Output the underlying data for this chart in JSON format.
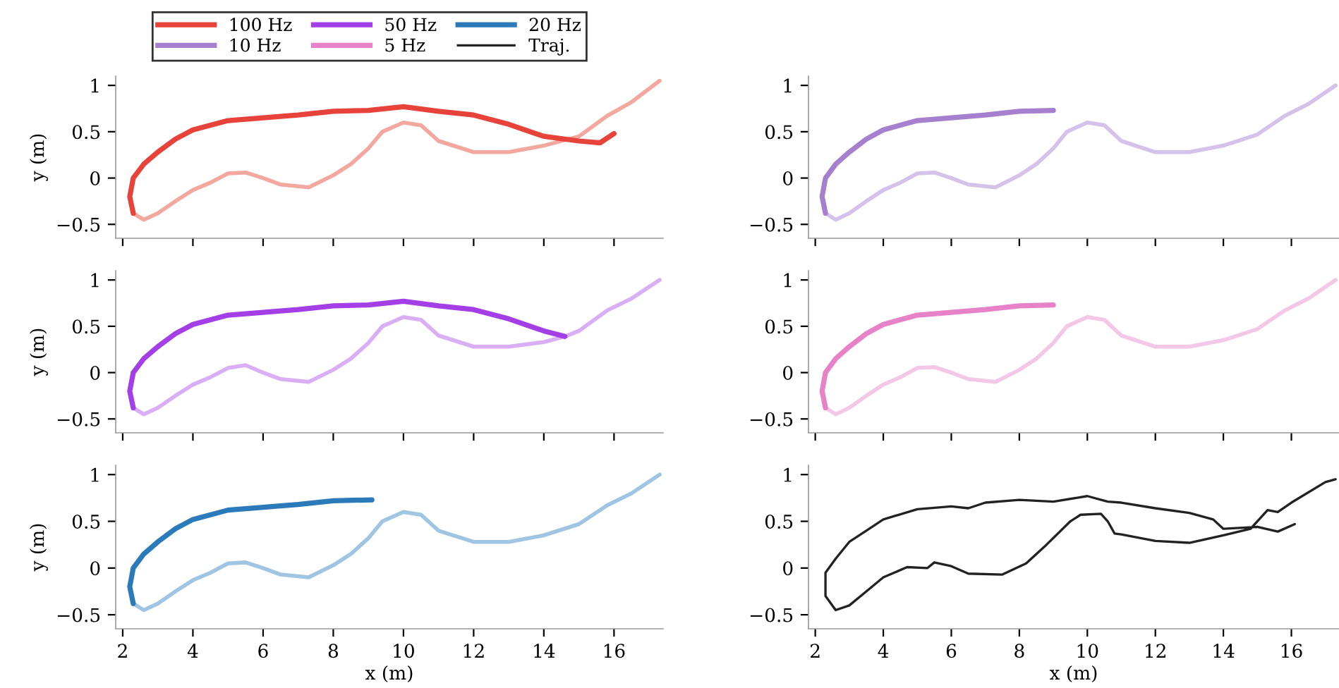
{
  "chart_data": [
    {
      "type": "line",
      "ylabel": "y (m)",
      "xlim": [
        1.8,
        17.4
      ],
      "ylim": [
        -0.65,
        1.1
      ],
      "xticks": [
        2,
        4,
        6,
        8,
        10,
        12,
        14,
        16
      ],
      "yticks": [
        -0.5,
        0,
        0.5,
        1
      ],
      "tick_labels": "y",
      "legend": "top",
      "series": [
        {
          "color": "#f4a79f",
          "x": [
            17.3,
            16.5,
            15.8,
            15.0,
            14.0,
            13.0,
            12.0,
            11.0,
            10.5,
            10.0,
            9.4,
            9.0,
            8.5,
            8.0,
            7.3,
            6.5,
            6.0,
            5.5,
            5.0,
            4.5,
            4.0,
            3.5,
            3.0,
            2.6,
            2.3
          ],
          "values": [
            1.05,
            0.82,
            0.67,
            0.45,
            0.35,
            0.28,
            0.28,
            0.4,
            0.57,
            0.6,
            0.5,
            0.32,
            0.15,
            0.03,
            -0.1,
            -0.07,
            0.0,
            0.06,
            0.05,
            -0.05,
            -0.13,
            -0.25,
            -0.38,
            -0.45,
            -0.38
          ]
        },
        {
          "name": "100 Hz",
          "color": "#e8433a",
          "x": [
            2.3,
            2.2,
            2.3,
            2.6,
            3.0,
            3.5,
            4.0,
            5.0,
            6.0,
            7.0,
            8.0,
            9.0,
            10.0,
            11.0,
            12.0,
            13.0,
            14.0,
            15.0,
            15.6,
            16.0
          ],
          "values": [
            -0.38,
            -0.2,
            0.0,
            0.15,
            0.28,
            0.42,
            0.52,
            0.62,
            0.65,
            0.68,
            0.72,
            0.73,
            0.77,
            0.72,
            0.68,
            0.58,
            0.45,
            0.4,
            0.38,
            0.48
          ]
        }
      ]
    },
    {
      "type": "line",
      "xlim": [
        1.8,
        17.4
      ],
      "ylim": [
        -0.65,
        1.1
      ],
      "xticks": [
        2,
        4,
        6,
        8,
        10,
        12,
        14,
        16
      ],
      "yticks": [
        -0.5,
        0,
        0.5,
        1
      ],
      "tick_labels": "y",
      "legend": "top",
      "series": [
        {
          "color": "#d4c2ea",
          "x": [
            17.3,
            16.5,
            15.8,
            15.0,
            14.0,
            13.0,
            12.0,
            11.0,
            10.5,
            10.0,
            9.4,
            9.0,
            8.5,
            8.0,
            7.3,
            6.5,
            6.0,
            5.5,
            5.0,
            4.5,
            4.0,
            3.5,
            3.0,
            2.6,
            2.3
          ],
          "values": [
            1.0,
            0.8,
            0.67,
            0.47,
            0.35,
            0.28,
            0.28,
            0.4,
            0.57,
            0.6,
            0.5,
            0.32,
            0.15,
            0.03,
            -0.1,
            -0.07,
            0.0,
            0.06,
            0.05,
            -0.05,
            -0.13,
            -0.25,
            -0.38,
            -0.45,
            -0.38
          ]
        },
        {
          "name": "10 Hz",
          "color": "#a77fcf",
          "x": [
            2.3,
            2.2,
            2.3,
            2.6,
            3.0,
            3.5,
            4.0,
            5.0,
            6.0,
            7.0,
            8.0,
            9.0
          ],
          "values": [
            -0.38,
            -0.2,
            0.0,
            0.15,
            0.28,
            0.42,
            0.52,
            0.62,
            0.65,
            0.68,
            0.72,
            0.73
          ]
        }
      ]
    },
    {
      "type": "line",
      "ylabel": "y (m)",
      "xlim": [
        1.8,
        17.4
      ],
      "ylim": [
        -0.65,
        1.1
      ],
      "xticks": [
        2,
        4,
        6,
        8,
        10,
        12,
        14,
        16
      ],
      "yticks": [
        -0.5,
        0,
        0.5,
        1
      ],
      "tick_labels": "y",
      "legend": "top",
      "series": [
        {
          "color": "#d9aef5",
          "x": [
            17.3,
            16.5,
            15.8,
            15.0,
            14.6,
            14.0,
            13.0,
            12.0,
            11.0,
            10.5,
            10.0,
            9.4,
            9.0,
            8.5,
            8.0,
            7.3,
            6.5,
            6.0,
            5.5,
            5.0,
            4.5,
            4.0,
            3.5,
            3.0,
            2.6,
            2.3
          ],
          "values": [
            1.0,
            0.8,
            0.67,
            0.45,
            0.39,
            0.33,
            0.28,
            0.28,
            0.4,
            0.57,
            0.6,
            0.5,
            0.32,
            0.15,
            0.03,
            -0.1,
            -0.07,
            0.0,
            0.08,
            0.05,
            -0.05,
            -0.13,
            -0.25,
            -0.38,
            -0.45,
            -0.38
          ]
        },
        {
          "name": "50 Hz",
          "color": "#a43ee6",
          "x": [
            2.3,
            2.2,
            2.3,
            2.6,
            3.0,
            3.5,
            4.0,
            5.0,
            6.0,
            7.0,
            8.0,
            9.0,
            10.0,
            11.0,
            12.0,
            13.0,
            14.0,
            14.6
          ],
          "values": [
            -0.38,
            -0.2,
            0.0,
            0.15,
            0.28,
            0.42,
            0.52,
            0.62,
            0.65,
            0.68,
            0.72,
            0.73,
            0.77,
            0.72,
            0.68,
            0.58,
            0.45,
            0.39
          ]
        }
      ]
    },
    {
      "type": "line",
      "xlim": [
        1.8,
        17.4
      ],
      "ylim": [
        -0.65,
        1.1
      ],
      "xticks": [
        2,
        4,
        6,
        8,
        10,
        12,
        14,
        16
      ],
      "yticks": [
        -0.5,
        0,
        0.5,
        1
      ],
      "tick_labels": "y",
      "legend": "top",
      "series": [
        {
          "color": "#f2c8e6",
          "x": [
            17.3,
            16.5,
            15.8,
            15.0,
            14.0,
            13.0,
            12.0,
            11.0,
            10.5,
            10.0,
            9.4,
            9.0,
            8.5,
            8.0,
            7.3,
            6.5,
            6.0,
            5.5,
            5.0,
            4.5,
            4.0,
            3.5,
            3.0,
            2.6,
            2.3
          ],
          "values": [
            1.0,
            0.8,
            0.67,
            0.47,
            0.35,
            0.28,
            0.28,
            0.4,
            0.57,
            0.6,
            0.5,
            0.32,
            0.15,
            0.03,
            -0.1,
            -0.07,
            0.0,
            0.06,
            0.05,
            -0.05,
            -0.13,
            -0.25,
            -0.38,
            -0.45,
            -0.38
          ]
        },
        {
          "name": "5 Hz",
          "color": "#e782c8",
          "x": [
            2.3,
            2.2,
            2.3,
            2.6,
            3.0,
            3.5,
            4.0,
            5.0,
            6.0,
            7.0,
            8.0,
            9.0
          ],
          "values": [
            -0.38,
            -0.2,
            0.0,
            0.15,
            0.28,
            0.42,
            0.52,
            0.62,
            0.65,
            0.68,
            0.72,
            0.73
          ]
        }
      ]
    },
    {
      "type": "line",
      "xlabel": "x (m)",
      "ylabel": "y (m)",
      "xlim": [
        1.8,
        17.4
      ],
      "ylim": [
        -0.65,
        1.1
      ],
      "xticks": [
        2,
        4,
        6,
        8,
        10,
        12,
        14,
        16
      ],
      "yticks": [
        -0.5,
        0,
        0.5,
        1
      ],
      "legend": "top",
      "series": [
        {
          "color": "#9fc5e3",
          "x": [
            17.3,
            16.5,
            15.8,
            15.0,
            14.0,
            13.0,
            12.0,
            11.0,
            10.5,
            10.0,
            9.4,
            9.0,
            8.5,
            8.0,
            7.3,
            6.5,
            6.0,
            5.5,
            5.0,
            4.5,
            4.0,
            3.5,
            3.0,
            2.6,
            2.3
          ],
          "values": [
            1.0,
            0.8,
            0.67,
            0.47,
            0.35,
            0.28,
            0.28,
            0.4,
            0.57,
            0.6,
            0.5,
            0.32,
            0.15,
            0.03,
            -0.1,
            -0.07,
            0.0,
            0.06,
            0.05,
            -0.05,
            -0.13,
            -0.25,
            -0.38,
            -0.45,
            -0.38
          ]
        },
        {
          "name": "20 Hz",
          "color": "#2b7bba",
          "x": [
            2.3,
            2.2,
            2.3,
            2.6,
            3.0,
            3.5,
            4.0,
            5.0,
            6.0,
            7.0,
            8.0,
            9.1
          ],
          "values": [
            -0.38,
            -0.2,
            0.0,
            0.15,
            0.28,
            0.42,
            0.52,
            0.62,
            0.65,
            0.68,
            0.72,
            0.73
          ]
        }
      ]
    },
    {
      "type": "line",
      "xlabel": "x (m)",
      "xlim": [
        1.8,
        17.4
      ],
      "ylim": [
        -0.65,
        1.1
      ],
      "xticks": [
        2,
        4,
        6,
        8,
        10,
        12,
        14,
        16
      ],
      "yticks": [
        -0.5,
        0,
        0.5,
        1
      ],
      "legend": "top",
      "series": [
        {
          "name": "Traj.",
          "color": "#222222",
          "x": [
            17.3,
            17.0,
            16.0,
            15.6,
            15.3,
            14.8,
            14.0,
            13.0,
            12.0,
            11.0,
            10.8,
            10.6,
            10.4,
            9.8,
            9.5,
            8.8,
            8.2,
            7.5,
            6.5,
            6.0,
            5.5,
            5.3,
            4.7,
            4.0,
            3.5,
            3.0,
            2.6,
            2.3,
            2.3,
            2.6,
            3.0,
            3.5,
            4.0,
            5.0,
            6.0,
            6.5,
            7.0,
            8.0,
            9.0,
            10.0,
            10.6,
            11.0,
            12.0,
            13.0,
            13.7,
            14.0,
            15.0,
            15.6,
            16.1
          ],
          "values": [
            0.95,
            0.92,
            0.7,
            0.6,
            0.62,
            0.42,
            0.35,
            0.27,
            0.29,
            0.36,
            0.37,
            0.5,
            0.58,
            0.57,
            0.5,
            0.25,
            0.05,
            -0.07,
            -0.06,
            0.02,
            0.06,
            0.0,
            0.01,
            -0.1,
            -0.25,
            -0.4,
            -0.45,
            -0.3,
            -0.05,
            0.1,
            0.28,
            0.4,
            0.52,
            0.63,
            0.66,
            0.64,
            0.7,
            0.73,
            0.71,
            0.77,
            0.71,
            0.7,
            0.64,
            0.59,
            0.52,
            0.42,
            0.44,
            0.39,
            0.47
          ]
        }
      ]
    }
  ]
}
